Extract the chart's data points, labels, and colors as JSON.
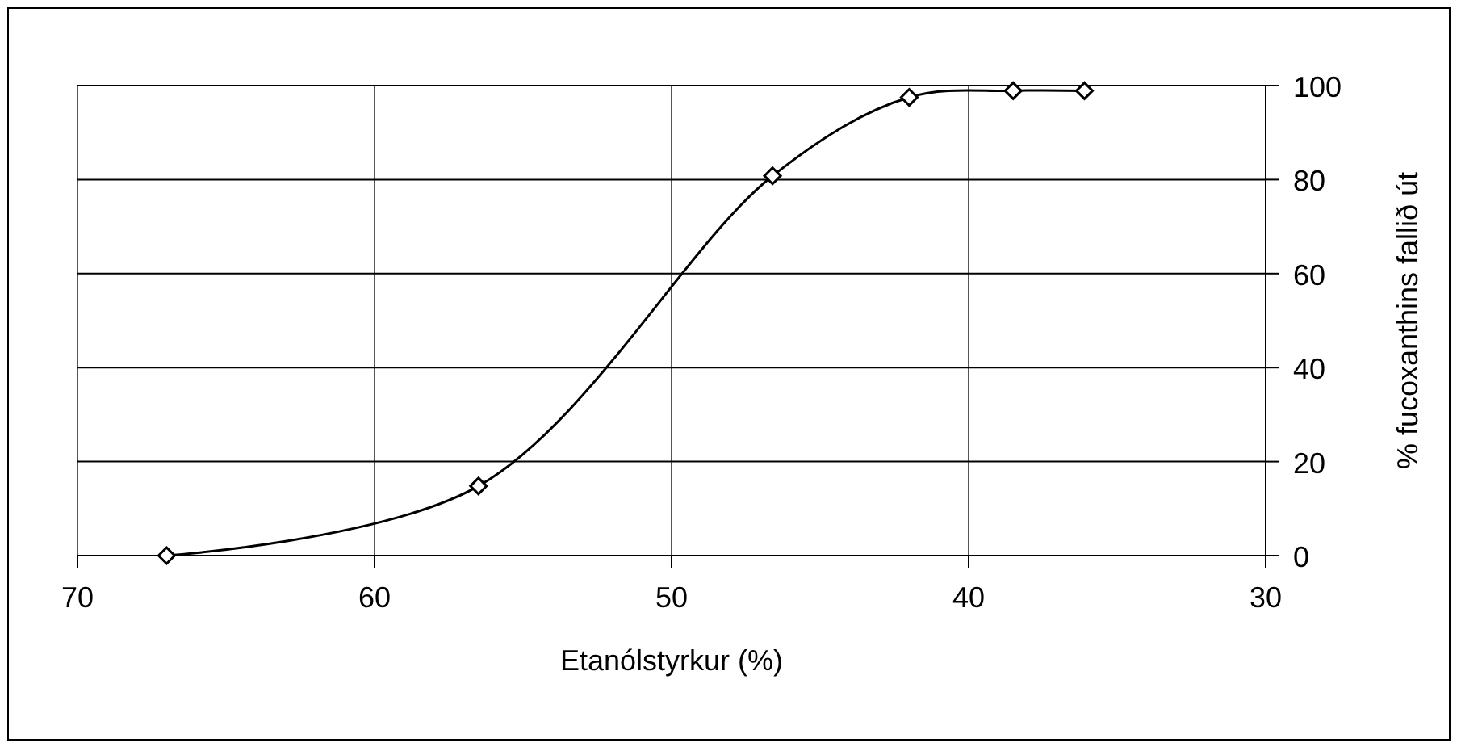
{
  "chart_data": {
    "type": "line",
    "xlabel": "Etanólstyrkur (%)",
    "y2label": "% fucoxanthins fallið út",
    "x": [
      67.0,
      56.5,
      46.6,
      42.0,
      38.5,
      36.1
    ],
    "series": [
      {
        "color": "#000000",
        "values": [
          0,
          14.8,
          80.8,
          97.5,
          98.9,
          98.9
        ]
      }
    ],
    "xlim": [
      70,
      30
    ],
    "xticks": [
      70,
      60,
      50,
      40,
      30
    ],
    "ylim": [
      0,
      100
    ],
    "yticks": [
      0,
      20,
      40,
      60,
      80,
      100
    ],
    "grid": true,
    "marker": "diamond",
    "line_style": "solid"
  }
}
